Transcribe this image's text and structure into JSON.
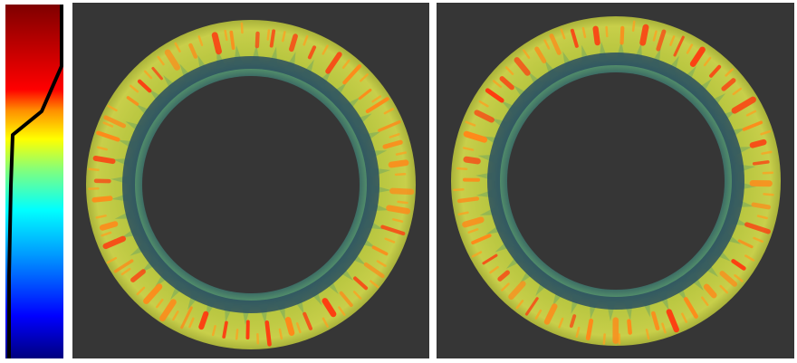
{
  "colormap": {
    "name": "jet",
    "stops": [
      "#00007f",
      "#0000ff",
      "#00a0ff",
      "#00ffff",
      "#7fff7f",
      "#ffff00",
      "#ff7f00",
      "#ff0000",
      "#7f0000"
    ],
    "opacity_transfer_curve": true
  },
  "views": [
    {
      "id": "left",
      "background": "#363636",
      "ring_outer_color": "#b8c640",
      "ring_inner_color": "#2b5060",
      "hotspot_color": "#ff3a10"
    },
    {
      "id": "right",
      "background": "#363636",
      "ring_outer_color": "#b8c640",
      "ring_inner_color": "#2b5060",
      "hotspot_color": "#ff3a10"
    }
  ]
}
